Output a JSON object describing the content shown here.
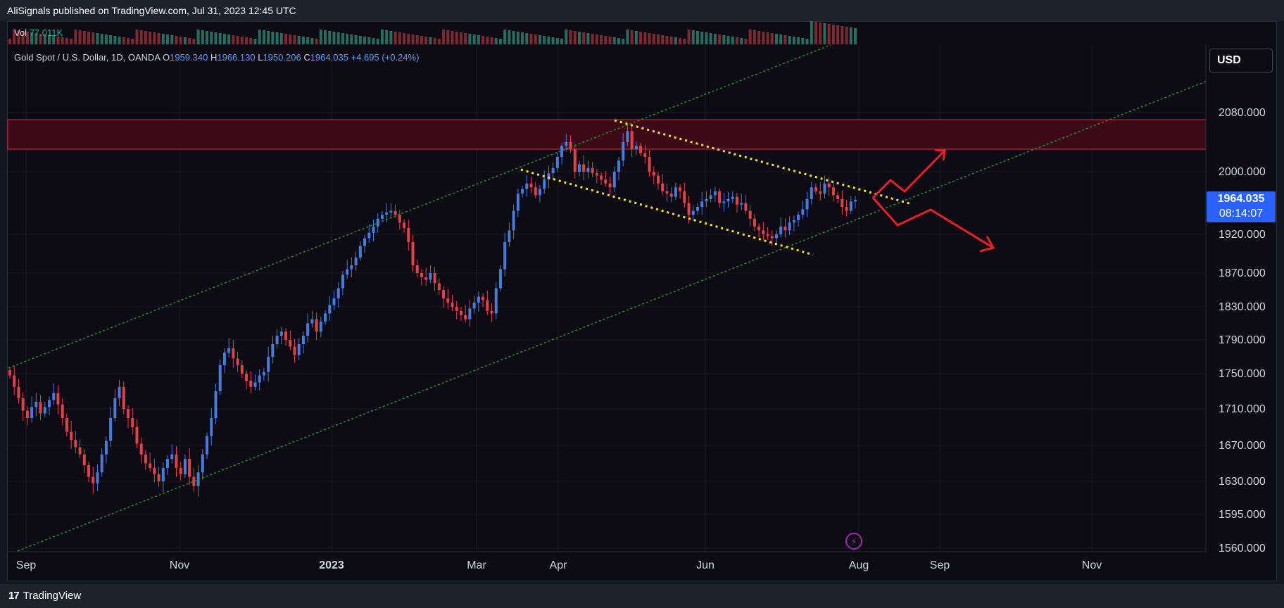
{
  "header": {
    "text": "AliSignals published on TradingView.com, Jul 31, 2023 12:45 UTC"
  },
  "footer": {
    "brand": "TradingView",
    "logo_mark": "17"
  },
  "volume": {
    "label": "Vol",
    "value": "77.011K"
  },
  "legend": {
    "symbol": "Gold Spot / U.S. Dollar, 1D, OANDA",
    "o_label": "O",
    "o": "1959.340",
    "h_label": "H",
    "h": "1966.130",
    "l_label": "L",
    "l": "1950.206",
    "c_label": "C",
    "c": "1964.035",
    "change": "+4.695 (+0.24%)"
  },
  "currency_button": "USD",
  "last_price": {
    "price": "1964.035",
    "countdown": "08:14:07"
  },
  "colors": {
    "up": "#4a7bd8",
    "down": "#e0424d",
    "zone": "#4a0a1c",
    "trend": "#2e8b2e",
    "wedge": "#f5e52a",
    "arrow": "#e8202a",
    "accent": "#2962ff"
  },
  "chart_data": {
    "type": "candlestick",
    "symbol": "XAUUSD",
    "y_ticks": [
      "2080.000",
      "2000.000",
      "1920.000",
      "1870.000",
      "1830.000",
      "1790.000",
      "1750.000",
      "1710.000",
      "1670.000",
      "1630.000",
      "1595.000",
      "1560.000"
    ],
    "x_ticks": [
      "Sep",
      "Nov",
      "2023",
      "Mar",
      "Apr",
      "Jun",
      "Aug",
      "Sep",
      "Nov"
    ],
    "ylim": [
      1555,
      2130
    ],
    "closes": [
      1748,
      1735,
      1722,
      1708,
      1700,
      1712,
      1718,
      1705,
      1712,
      1720,
      1728,
      1715,
      1700,
      1685,
      1676,
      1668,
      1660,
      1648,
      1635,
      1628,
      1640,
      1660,
      1675,
      1700,
      1722,
      1735,
      1710,
      1700,
      1690,
      1672,
      1660,
      1650,
      1645,
      1638,
      1630,
      1645,
      1655,
      1660,
      1645,
      1638,
      1655,
      1635,
      1625,
      1640,
      1660,
      1680,
      1700,
      1730,
      1760,
      1775,
      1780,
      1768,
      1760,
      1750,
      1742,
      1735,
      1740,
      1748,
      1752,
      1770,
      1785,
      1795,
      1800,
      1790,
      1782,
      1772,
      1785,
      1795,
      1810,
      1815,
      1800,
      1812,
      1822,
      1832,
      1840,
      1852,
      1868,
      1875,
      1880,
      1890,
      1905,
      1915,
      1922,
      1930,
      1940,
      1945,
      1948,
      1950,
      1945,
      1935,
      1928,
      1910,
      1880,
      1870,
      1865,
      1862,
      1870,
      1858,
      1850,
      1840,
      1835,
      1830,
      1825,
      1820,
      1815,
      1828,
      1835,
      1842,
      1838,
      1825,
      1822,
      1852,
      1875,
      1910,
      1925,
      1950,
      1972,
      1978,
      1985,
      1980,
      1970,
      1978,
      1990,
      1998,
      2005,
      2020,
      2035,
      2040,
      2030,
      2000,
      2010,
      2000,
      2005,
      1998,
      1995,
      1990,
      1985,
      1980,
      2000,
      2015,
      2040,
      2055,
      2030,
      2035,
      2025,
      2020,
      2000,
      1995,
      1985,
      1975,
      1972,
      1968,
      1980,
      1975,
      1960,
      1945,
      1950,
      1955,
      1962,
      1965,
      1970,
      1975,
      1960,
      1962,
      1965,
      1968,
      1958,
      1960,
      1950,
      1940,
      1930,
      1925,
      1920,
      1918,
      1915,
      1920,
      1930,
      1925,
      1935,
      1938,
      1945,
      1952,
      1965,
      1980,
      1975,
      1972,
      1985,
      1980,
      1970,
      1965,
      1955,
      1950,
      1962,
      1964
    ]
  }
}
